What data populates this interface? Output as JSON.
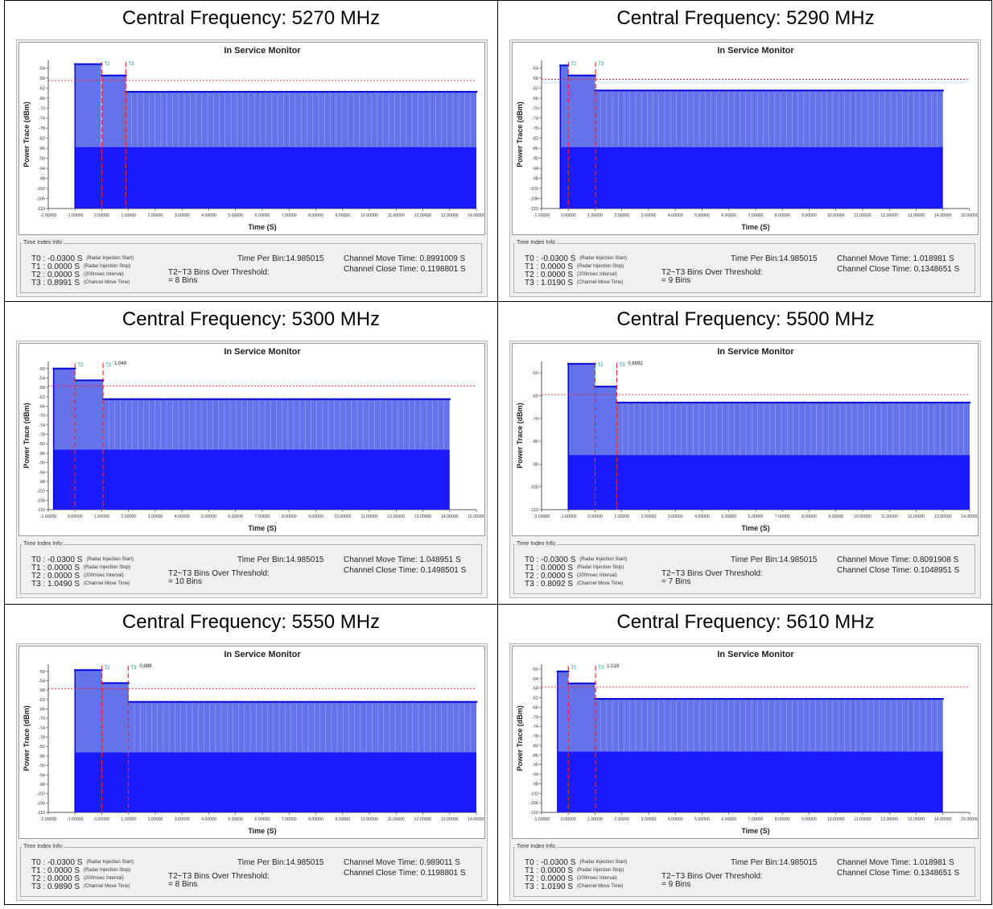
{
  "panels": [
    {
      "title": "Central Frequency: 5270 MHz",
      "chart_data": {
        "type": "bar",
        "title": "In Service Monitor",
        "xlabel": "Time (S)",
        "ylabel": "Power Trace (dBm)",
        "xlim": [
          -2,
          14
        ],
        "ylim": [
          -110,
          -51
        ],
        "xticks": [
          "-2.00000",
          "-1.00000",
          "0.00000",
          "1.00000",
          "2.00000",
          "3.00000",
          "4.00000",
          "5.00000",
          "6.00000",
          "7.00000",
          "8.00000",
          "9.00000",
          "10.00000",
          "11.00000",
          "12.00000",
          "13.00000",
          "14.00000"
        ],
        "yticks": [
          "-54",
          "-58",
          "-62",
          "-66",
          "-70",
          "-74",
          "-78",
          "-82",
          "-86",
          "-90",
          "-94",
          "-98",
          "-102",
          "-106",
          "-110"
        ],
        "threshold_dbm": -59,
        "markers_s": [
          0.0,
          0.8991
        ],
        "marker_labels": [
          "T2",
          "T3"
        ],
        "series": [
          {
            "x": [
              -1.0,
              -0.03
            ],
            "y": -52.5
          },
          {
            "x": [
              0.0,
              0.9
            ],
            "y": -57.0
          },
          {
            "x": [
              0.9,
              14.0
            ],
            "y": -63.5
          }
        ],
        "floor_dbm": -85.5
      },
      "info": {
        "legend": "Time Index Info",
        "times": [
          {
            "t": "T0 : -0.0300  S",
            "note": "(Radar Injection Start)"
          },
          {
            "t": "T1 : 0.0000  S",
            "note": "(Radar Injection Stop)"
          },
          {
            "t": "T2 : 0.0000  S",
            "note": "(200msec Interval)"
          },
          {
            "t": "T3 : 0.8991  S",
            "note": "(Channel Move Time)"
          }
        ],
        "time_per_bin": "Time Per Bin:14.985015",
        "bins_label": "T2~T3 Bins Over Threshold:",
        "bins_value": "= 8 Bins",
        "move_time": "Channel Move Time: 0.8991009  S",
        "close_time": "Channel Close Time: 0.1198801  S"
      }
    },
    {
      "title": "Central Frequency: 5290 MHz",
      "chart_data": {
        "type": "bar",
        "title": "In Service Monitor",
        "xlabel": "Time (S)",
        "ylabel": "Power Trace (dBm)",
        "xlim": [
          -1,
          15
        ],
        "ylim": [
          -110,
          -51
        ],
        "xticks": [
          "-1.00000",
          "0.00000",
          "1.00000",
          "2.00000",
          "3.00000",
          "4.00000",
          "5.00000",
          "6.00000",
          "7.00000",
          "8.00000",
          "9.00000",
          "10.00000",
          "11.00000",
          "12.00000",
          "13.00000",
          "14.00000",
          "15.00000"
        ],
        "yticks": [
          "-54",
          "-58",
          "-62",
          "-66",
          "-70",
          "-74",
          "-78",
          "-82",
          "-86",
          "-90",
          "-94",
          "-98",
          "-102",
          "-106",
          "-110"
        ],
        "threshold_dbm": -58.5,
        "markers_s": [
          0.0,
          1.019
        ],
        "marker_labels": [
          "T2",
          "T3"
        ],
        "series": [
          {
            "x": [
              -0.3,
              0.0
            ],
            "y": -53.0
          },
          {
            "x": [
              0.0,
              1.0
            ],
            "y": -57.0
          },
          {
            "x": [
              1.0,
              14.0
            ],
            "y": -63.0
          }
        ],
        "floor_dbm": -85.5
      },
      "info": {
        "legend": "Time Index Info",
        "times": [
          {
            "t": "T0 : -0.0300  S",
            "note": "(Radar Injection Start)"
          },
          {
            "t": "T1 : 0.0000  S",
            "note": "(Radar Injection Stop)"
          },
          {
            "t": "T2 : 0.0000  S",
            "note": "(200msec Interval)"
          },
          {
            "t": "T3 : 1.0190  S",
            "note": "(Channel Move Time)"
          }
        ],
        "time_per_bin": "Time Per Bin:14.985015",
        "bins_label": "T2~T3 Bins Over Threshold:",
        "bins_value": "= 9 Bins",
        "move_time": "Channel Move Time: 1.018981  S",
        "close_time": "Channel Close Time: 0.1348651  S"
      }
    },
    {
      "title": "Central Frequency: 5300 MHz",
      "chart_data": {
        "type": "bar",
        "title": "In Service Monitor",
        "xlabel": "Time (S)",
        "ylabel": "Power Trace (dBm)",
        "xlim": [
          -1,
          15
        ],
        "ylim": [
          -110,
          -47
        ],
        "xticks": [
          "-1.00000",
          "0.00000",
          "1.00000",
          "2.00000",
          "3.00000",
          "4.00000",
          "5.00000",
          "6.00000",
          "7.00000",
          "8.00000",
          "9.00000",
          "10.00000",
          "11.00000",
          "12.00000",
          "13.00000",
          "14.00000",
          "15.00000"
        ],
        "yticks": [
          "-50",
          "-54",
          "-58",
          "-62",
          "-66",
          "-70",
          "-74",
          "-78",
          "-82",
          "-86",
          "-90",
          "-94",
          "-98",
          "-102",
          "-106",
          "-110"
        ],
        "threshold_dbm": -57.5,
        "markers_s": [
          0.0,
          1.049
        ],
        "marker_labels": [
          "T2",
          "T3"
        ],
        "annotations": [
          "1.049"
        ],
        "series": [
          {
            "x": [
              -0.8,
              0.0
            ],
            "y": -50.0
          },
          {
            "x": [
              0.0,
              1.05
            ],
            "y": -55.0
          },
          {
            "x": [
              1.05,
              14.0
            ],
            "y": -63.0
          }
        ],
        "floor_dbm": -84.5
      },
      "info": {
        "legend": "Time Index Info",
        "times": [
          {
            "t": "T0 : -0.0300  S",
            "note": "(Radar Injection Start)"
          },
          {
            "t": "T1 : 0.0000  S",
            "note": "(Radar Injection Stop)"
          },
          {
            "t": "T2 : 0.0000  S",
            "note": "(200msec Interval)"
          },
          {
            "t": "T3 : 1.0490  S",
            "note": "(Channel Move Time)"
          }
        ],
        "time_per_bin": "Time Per Bin:14.985015",
        "bins_label": "T2~T3 Bins Over Threshold:",
        "bins_value": "= 10 Bins",
        "move_time": "Channel Move Time: 1.048951  S",
        "close_time": "Channel Close Time: 0.1498501  S"
      }
    },
    {
      "title": "Central Frequency: 5500 MHz",
      "chart_data": {
        "type": "bar",
        "title": "In Service Monitor",
        "xlabel": "Time (S)",
        "ylabel": "Power Trace (dBm)",
        "xlim": [
          -2,
          14
        ],
        "ylim": [
          -110,
          -45
        ],
        "xticks": [
          "-2.00000",
          "-1.00000",
          "0.00000",
          "1.00000",
          "2.00000",
          "3.00000",
          "4.00000",
          "5.00000",
          "6.00000",
          "7.00000",
          "8.00000",
          "9.00000",
          "10.00000",
          "11.00000",
          "12.00000",
          "13.00000",
          "14.00000"
        ],
        "yticks": [
          "-50",
          "-60",
          "-70",
          "-80",
          "-90",
          "-100",
          "-110"
        ],
        "threshold_dbm": -59.5,
        "markers_s": [
          0.0,
          0.8092
        ],
        "marker_labels": [
          "T2",
          "T3"
        ],
        "annotations": [
          "0.8092"
        ],
        "series": [
          {
            "x": [
              -1.0,
              0.0
            ],
            "y": -46.0
          },
          {
            "x": [
              0.0,
              0.8
            ],
            "y": -56.0
          },
          {
            "x": [
              0.8,
              14.0
            ],
            "y": -63.0
          }
        ],
        "floor_dbm": -86.0
      },
      "info": {
        "legend": "Time Index Info",
        "times": [
          {
            "t": "T0 : -0.0300  S",
            "note": "(Radar Injection Start)"
          },
          {
            "t": "T1 : 0.0000  S",
            "note": "(Radar Injection Stop)"
          },
          {
            "t": "T2 : 0.0000  S",
            "note": "(200msec Interval)"
          },
          {
            "t": "T3 : 0.8092  S",
            "note": "(Channel Move Time)"
          }
        ],
        "time_per_bin": "Time Per Bin:14.985015",
        "bins_label": "T2~T3 Bins Over Threshold:",
        "bins_value": "= 7 Bins",
        "move_time": "Channel Move Time: 0.8091908  S",
        "close_time": "Channel Close Time: 0.1048951  S"
      }
    },
    {
      "title": "Central Frequency: 5550 MHz",
      "chart_data": {
        "type": "bar",
        "title": "In Service Monitor",
        "xlabel": "Time (S)",
        "ylabel": "Power Trace (dBm)",
        "xlim": [
          -2,
          14
        ],
        "ylim": [
          -110,
          -47
        ],
        "xticks": [
          "-2.00000",
          "-1.00000",
          "0.00000",
          "1.00000",
          "2.00000",
          "3.00000",
          "4.00000",
          "5.00000",
          "6.00000",
          "7.00000",
          "8.00000",
          "9.00000",
          "10.00000",
          "11.00000",
          "12.00000",
          "13.00000",
          "14.00000"
        ],
        "yticks": [
          "-50",
          "-54",
          "-58",
          "-62",
          "-66",
          "-70",
          "-74",
          "-78",
          "-82",
          "-86",
          "-90",
          "-94",
          "-98",
          "-102",
          "-106",
          "-110"
        ],
        "threshold_dbm": -57.5,
        "markers_s": [
          0.0,
          0.989
        ],
        "marker_labels": [
          "T2",
          "T3"
        ],
        "annotations": [
          "0.989"
        ],
        "series": [
          {
            "x": [
              -1.0,
              0.0
            ],
            "y": -49.5
          },
          {
            "x": [
              0.0,
              1.0
            ],
            "y": -55.0
          },
          {
            "x": [
              1.0,
              14.0
            ],
            "y": -63.0
          }
        ],
        "floor_dbm": -84.5
      },
      "info": {
        "legend": "Time Index Info",
        "times": [
          {
            "t": "T0 : -0.0300  S",
            "note": "(Radar Injection Start)"
          },
          {
            "t": "T1 : 0.0000  S",
            "note": "(Radar Injection Stop)"
          },
          {
            "t": "T2 : 0.0000  S",
            "note": "(200msec Interval)"
          },
          {
            "t": "T3 : 0.9890  S",
            "note": "(Channel Move Time)"
          }
        ],
        "time_per_bin": "Time Per Bin:14.985015",
        "bins_label": "T2~T3 Bins Over Threshold:",
        "bins_value": "= 8 Bins",
        "move_time": "Channel Move Time: 0.989011  S",
        "close_time": "Channel Close Time: 0.1198801  S"
      }
    },
    {
      "title": "Central Frequency: 5610 MHz",
      "chart_data": {
        "type": "bar",
        "title": "In Service Monitor",
        "xlabel": "Time (S)",
        "ylabel": "Power Trace (dBm)",
        "xlim": [
          -1,
          15
        ],
        "ylim": [
          -110,
          -48
        ],
        "xticks": [
          "-1.00000",
          "0.00000",
          "1.00000",
          "2.00000",
          "3.00000",
          "4.00000",
          "5.00000",
          "6.00000",
          "7.00000",
          "8.00000",
          "9.00000",
          "10.00000",
          "11.00000",
          "12.00000",
          "13.00000",
          "14.00000",
          "15.00000"
        ],
        "yticks": [
          "-50",
          "-54",
          "-58",
          "-62",
          "-66",
          "-70",
          "-74",
          "-78",
          "-82",
          "-86",
          "-90",
          "-94",
          "-98",
          "-102",
          "-106",
          "-110"
        ],
        "threshold_dbm": -57.5,
        "markers_s": [
          0.0,
          1.019
        ],
        "marker_labels": [
          "T2",
          "T3"
        ],
        "annotations": [
          "1.019"
        ],
        "series": [
          {
            "x": [
              -0.4,
              0.0
            ],
            "y": -51.0
          },
          {
            "x": [
              0.0,
              1.0
            ],
            "y": -56.0
          },
          {
            "x": [
              1.0,
              14.0
            ],
            "y": -62.5
          }
        ],
        "floor_dbm": -84.5
      },
      "info": {
        "legend": "Time Index Info",
        "times": [
          {
            "t": "T0 : -0.0300  S",
            "note": "(Radar Injection Start)"
          },
          {
            "t": "T1 : 0.0000  S",
            "note": "(Radar Injection Stop)"
          },
          {
            "t": "T2 : 0.0000  S",
            "note": "(200msec Interval)"
          },
          {
            "t": "T3 : 1.0190  S",
            "note": "(Channel Move Time)"
          }
        ],
        "time_per_bin": "Time Per Bin:14.985015",
        "bins_label": "T2~T3 Bins Over Threshold:",
        "bins_value": "= 9 Bins",
        "move_time": "Channel Move Time: 1.018981  S",
        "close_time": "Channel Close Time: 0.1348651  S"
      }
    }
  ],
  "colors": {
    "trace_line": "#0000ff",
    "trace_fill": "#1a1aff",
    "trace_upper": "#4a5ae8",
    "marker": "#1e2a8a",
    "threshold": "#ff2020",
    "vline": "#ff2020",
    "tlabel": "#009090"
  }
}
